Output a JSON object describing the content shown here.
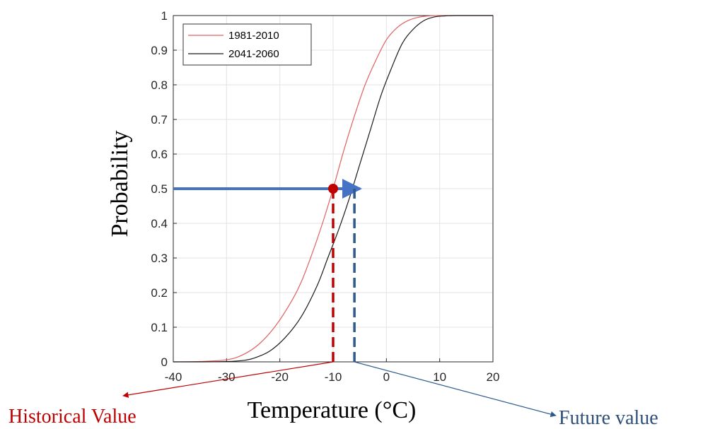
{
  "chart_data": {
    "type": "line",
    "xlabel": "Temperature (°C)",
    "ylabel": "Probability",
    "xlim": [
      -40,
      20
    ],
    "ylim": [
      0,
      1
    ],
    "xticks": [
      -40,
      -30,
      -20,
      -10,
      0,
      10,
      20
    ],
    "yticks": [
      0,
      0.1,
      0.2,
      0.3,
      0.4,
      0.5,
      0.6,
      0.7,
      0.8,
      0.9,
      1
    ],
    "grid": true,
    "legend": "top-left",
    "series": [
      {
        "name": "1981-2010",
        "color": "#e06060",
        "x": [
          -40,
          -35,
          -30,
          -27,
          -24,
          -21,
          -18,
          -16,
          -14,
          -12,
          -10,
          -8,
          -6,
          -4,
          -2,
          0,
          2,
          4,
          6,
          8,
          10,
          12,
          15,
          20
        ],
        "y": [
          0,
          0.001,
          0.006,
          0.02,
          0.05,
          0.1,
          0.17,
          0.23,
          0.31,
          0.4,
          0.5,
          0.61,
          0.71,
          0.8,
          0.87,
          0.93,
          0.965,
          0.985,
          0.995,
          0.999,
          1,
          1,
          1,
          1
        ]
      },
      {
        "name": "2041-2060",
        "color": "#1a1a1a",
        "x": [
          -40,
          -35,
          -30,
          -27,
          -25,
          -22,
          -19,
          -16,
          -13,
          -11,
          -9,
          -7,
          -5,
          -3,
          -1,
          1,
          3,
          5,
          7,
          9,
          11,
          13,
          15,
          20
        ],
        "y": [
          0,
          0,
          0.001,
          0.004,
          0.01,
          0.03,
          0.07,
          0.13,
          0.22,
          0.3,
          0.38,
          0.47,
          0.57,
          0.67,
          0.77,
          0.85,
          0.92,
          0.96,
          0.985,
          0.996,
          0.999,
          1,
          1,
          1
        ]
      }
    ],
    "annotations": {
      "probability_level": 0.5,
      "historical_x": -10,
      "future_x": -6,
      "historical_label": "Historical Value",
      "future_label": "Future value",
      "historical_color": "#c00000",
      "future_color": "#2e5b8e",
      "arrow_color": "#4472c4"
    }
  }
}
